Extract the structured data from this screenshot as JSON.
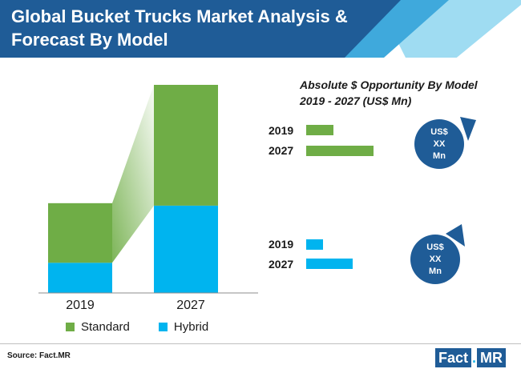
{
  "header": {
    "title_line1": "Global Bucket Trucks Market Analysis &",
    "title_line2": "Forecast By Model"
  },
  "colors": {
    "header_blue": "#1f5c97",
    "standard_green": "#6fad46",
    "hybrid_blue": "#00b4ef",
    "circle_blue": "#1f5c97"
  },
  "chart_data": [
    {
      "type": "bar",
      "stacked": true,
      "categories": [
        "2019",
        "2027"
      ],
      "series": [
        {
          "name": "Hybrid",
          "values": [
            37,
            107
          ]
        },
        {
          "name": "Standard",
          "values": [
            73,
            148
          ]
        }
      ],
      "ylim": [
        0,
        255
      ],
      "legend": "bottom"
    },
    {
      "type": "bar",
      "orientation": "horizontal",
      "title": "Absolute $ Opportunity By Model",
      "subtitle": "2019 - 2027 (US$ Mn)",
      "categories": [
        "2019",
        "2027"
      ],
      "series": [
        {
          "name": "Standard",
          "values": [
            34,
            84
          ]
        },
        {
          "name": "Hybrid",
          "values": [
            21,
            58
          ]
        }
      ],
      "xlim": [
        0,
        100
      ]
    }
  ],
  "opportunity": {
    "title": "Absolute $ Opportunity By Model",
    "subtitle": "2019 - 2027 (US$ Mn)",
    "standard": {
      "label_a": "2019",
      "label_b": "2027"
    },
    "hybrid": {
      "label_a": "2019",
      "label_b": "2027"
    },
    "circle_text": [
      "US$",
      "XX",
      "Mn"
    ]
  },
  "legend": {
    "standard": "Standard",
    "hybrid": "Hybrid"
  },
  "footer": {
    "source": "Source: Fact.MR",
    "logo_part1": "Fact",
    "logo_dot": ".",
    "logo_part2": "MR"
  }
}
